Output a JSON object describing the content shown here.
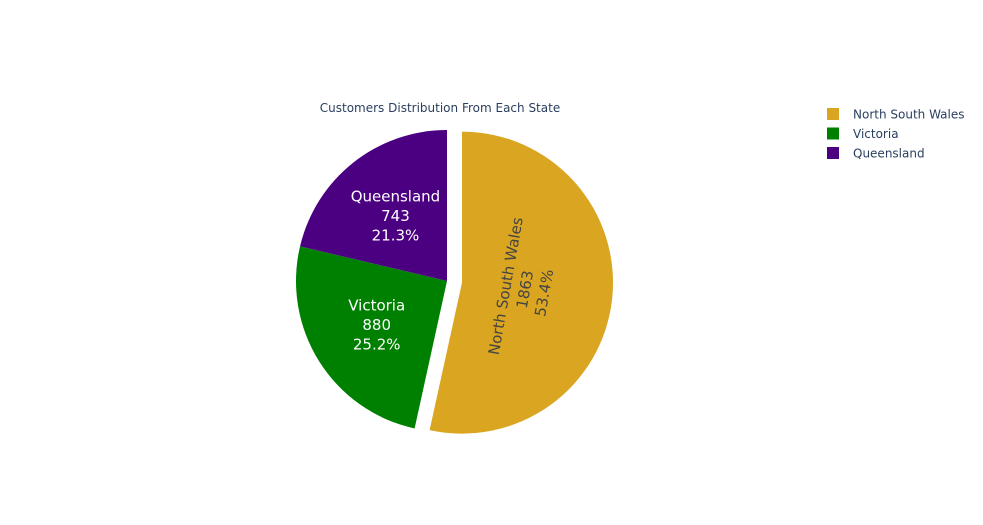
{
  "chart_data": {
    "type": "pie",
    "title": "Customers Distribution From Each State",
    "slices": [
      {
        "label": "North South Wales",
        "value": 1863,
        "percent": "53.4%",
        "color": "#DAA520",
        "text_color": "#444444",
        "pulled": true
      },
      {
        "label": "Victoria",
        "value": 880,
        "percent": "25.2%",
        "color": "#008000",
        "text_color": "#ffffff",
        "pulled": false
      },
      {
        "label": "Queensland",
        "value": 743,
        "percent": "21.3%",
        "color": "#4B0082",
        "text_color": "#ffffff",
        "pulled": false
      }
    ],
    "legend": {
      "position": "top-right",
      "entries": [
        "North South Wales",
        "Victoria",
        "Queensland"
      ]
    }
  }
}
